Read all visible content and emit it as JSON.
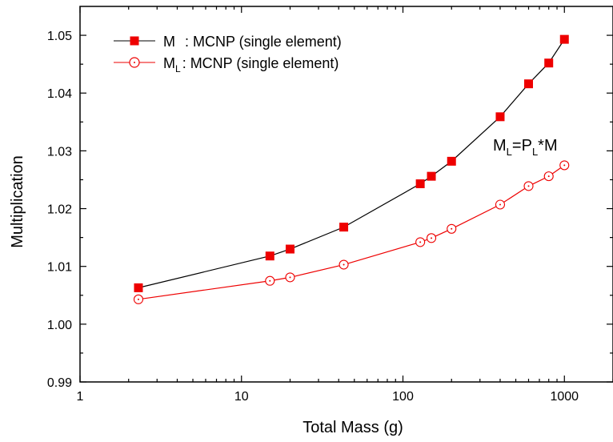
{
  "chart_data": {
    "type": "line",
    "xlabel": "Total Mass (g)",
    "ylabel": "Multiplication",
    "xscale": "log",
    "xlim": [
      1,
      2000
    ],
    "ylim": [
      0.99,
      1.055
    ],
    "x_ticks": [
      1,
      10,
      100,
      1000
    ],
    "x_tick_labels": [
      "1",
      "10",
      "100",
      "1000"
    ],
    "y_ticks": [
      0.99,
      1.0,
      1.01,
      1.02,
      1.03,
      1.04,
      1.05
    ],
    "y_tick_labels": [
      "0.99",
      "1.00",
      "1.01",
      "1.02",
      "1.03",
      "1.04",
      "1.05"
    ],
    "grid": false,
    "legend_position": "top-left",
    "series": [
      {
        "name_main": "M",
        "name_rest": ": MCNP (single element)",
        "color": "#000000",
        "marker": "filled-square",
        "marker_color": "#ee0000",
        "x": [
          2.3,
          15,
          20,
          43,
          128,
          150,
          200,
          400,
          600,
          800,
          1000
        ],
        "values": [
          1.0063,
          1.0118,
          1.013,
          1.0168,
          1.0243,
          1.0256,
          1.0282,
          1.0359,
          1.0416,
          1.0452,
          1.0493
        ]
      },
      {
        "name_main": "M",
        "name_sub": "L",
        "name_rest": ": MCNP (single element)",
        "color": "#ee0000",
        "marker": "open-circle",
        "marker_color": "#ee0000",
        "x": [
          2.3,
          15,
          20,
          43,
          128,
          150,
          200,
          400,
          600,
          800,
          1000
        ],
        "values": [
          1.0043,
          1.0075,
          1.0081,
          1.0103,
          1.0142,
          1.0149,
          1.0165,
          1.0207,
          1.0239,
          1.0256,
          1.0275
        ]
      }
    ],
    "annotation": {
      "a": "M",
      "a_sub": "L",
      "b": "=P",
      "b_sub": "L",
      "c": "*M"
    }
  }
}
